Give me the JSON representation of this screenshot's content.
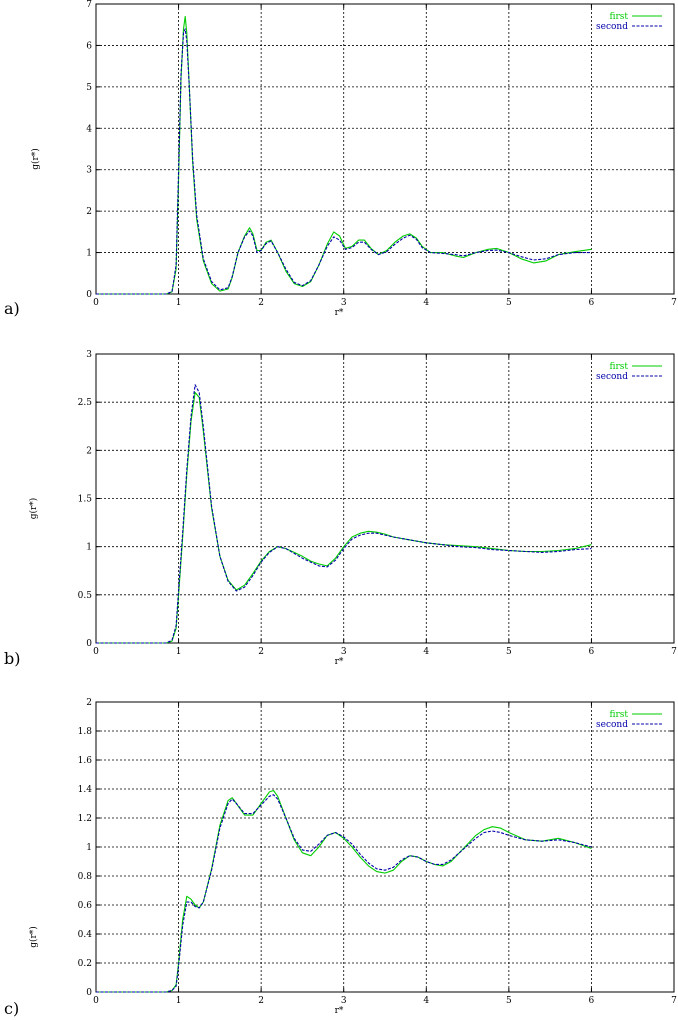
{
  "colors": {
    "first": "#00cc00",
    "second": "#0000aa"
  },
  "chart_data": [
    {
      "type": "line",
      "panel_label": "a)",
      "xlabel": "r*",
      "ylabel": "g(r*)",
      "xlim": [
        0,
        7
      ],
      "ylim": [
        0,
        7
      ],
      "xticks": [
        0,
        1,
        2,
        3,
        4,
        5,
        6,
        7
      ],
      "yticks": [
        0,
        1,
        2,
        3,
        4,
        5,
        6,
        7
      ],
      "grid": true,
      "legend_position": "top-right",
      "series": [
        {
          "name": "first",
          "x": [
            0,
            0.85,
            0.92,
            0.97,
            1.0,
            1.03,
            1.06,
            1.08,
            1.1,
            1.13,
            1.17,
            1.22,
            1.3,
            1.4,
            1.5,
            1.6,
            1.65,
            1.72,
            1.8,
            1.86,
            1.9,
            1.95,
            2.0,
            2.06,
            2.12,
            2.2,
            2.3,
            2.4,
            2.5,
            2.6,
            2.7,
            2.8,
            2.88,
            2.95,
            3.02,
            3.1,
            3.18,
            3.25,
            3.33,
            3.42,
            3.52,
            3.62,
            3.72,
            3.8,
            3.88,
            3.95,
            4.05,
            4.2,
            4.35,
            4.45,
            4.6,
            4.75,
            4.85,
            5.0,
            5.15,
            5.3,
            5.45,
            5.6,
            5.8,
            6.0
          ],
          "y": [
            0,
            0,
            0.05,
            0.6,
            2.8,
            5.2,
            6.4,
            6.7,
            6.3,
            5.0,
            3.2,
            1.8,
            0.8,
            0.25,
            0.07,
            0.12,
            0.4,
            1.0,
            1.4,
            1.6,
            1.45,
            1.05,
            1.05,
            1.25,
            1.3,
            1.0,
            0.55,
            0.25,
            0.18,
            0.3,
            0.7,
            1.2,
            1.5,
            1.4,
            1.1,
            1.15,
            1.3,
            1.3,
            1.1,
            0.95,
            1.05,
            1.25,
            1.4,
            1.45,
            1.35,
            1.15,
            1.0,
            1.0,
            0.92,
            0.88,
            1.0,
            1.08,
            1.1,
            1.0,
            0.85,
            0.75,
            0.8,
            0.95,
            1.02,
            1.08
          ]
        },
        {
          "name": "second",
          "x": [
            0,
            0.85,
            0.92,
            0.97,
            1.0,
            1.03,
            1.06,
            1.08,
            1.1,
            1.13,
            1.17,
            1.22,
            1.3,
            1.4,
            1.5,
            1.6,
            1.65,
            1.72,
            1.8,
            1.86,
            1.9,
            1.95,
            2.0,
            2.06,
            2.12,
            2.2,
            2.3,
            2.4,
            2.5,
            2.6,
            2.7,
            2.8,
            2.88,
            2.95,
            3.02,
            3.1,
            3.18,
            3.25,
            3.33,
            3.42,
            3.52,
            3.62,
            3.72,
            3.8,
            3.88,
            3.95,
            4.05,
            4.2,
            4.35,
            4.45,
            4.6,
            4.75,
            4.85,
            5.0,
            5.15,
            5.3,
            5.45,
            5.6,
            5.8,
            6.0
          ],
          "y": [
            0,
            0,
            0.06,
            0.7,
            3.0,
            5.3,
            6.3,
            6.4,
            6.1,
            5.0,
            3.3,
            1.9,
            0.85,
            0.3,
            0.1,
            0.15,
            0.42,
            1.0,
            1.38,
            1.52,
            1.4,
            1.0,
            1.05,
            1.22,
            1.28,
            1.0,
            0.6,
            0.28,
            0.2,
            0.32,
            0.7,
            1.15,
            1.38,
            1.3,
            1.08,
            1.12,
            1.25,
            1.25,
            1.08,
            0.95,
            1.02,
            1.2,
            1.35,
            1.42,
            1.32,
            1.12,
            1.0,
            0.98,
            0.95,
            0.92,
            1.0,
            1.05,
            1.06,
            1.0,
            0.9,
            0.82,
            0.85,
            0.95,
            1.0,
            1.0
          ]
        }
      ]
    },
    {
      "type": "line",
      "panel_label": "b)",
      "xlabel": "r*",
      "ylabel": "g(r*)",
      "xlim": [
        0,
        7
      ],
      "ylim": [
        0,
        3
      ],
      "xticks": [
        0,
        1,
        2,
        3,
        4,
        5,
        6,
        7
      ],
      "yticks": [
        0,
        0.5,
        1,
        1.5,
        2,
        2.5,
        3
      ],
      "grid": true,
      "legend_position": "top-right",
      "series": [
        {
          "name": "first",
          "x": [
            0,
            0.85,
            0.92,
            0.97,
            1.0,
            1.05,
            1.1,
            1.15,
            1.2,
            1.25,
            1.3,
            1.4,
            1.5,
            1.6,
            1.7,
            1.8,
            1.9,
            2.0,
            2.1,
            2.2,
            2.3,
            2.4,
            2.5,
            2.6,
            2.7,
            2.8,
            2.9,
            3.0,
            3.1,
            3.2,
            3.3,
            3.4,
            3.5,
            3.6,
            3.8,
            4.0,
            4.2,
            4.4,
            4.6,
            4.8,
            5.0,
            5.2,
            5.4,
            5.6,
            5.8,
            6.0
          ],
          "y": [
            0,
            0,
            0.02,
            0.15,
            0.5,
            1.1,
            1.75,
            2.3,
            2.6,
            2.55,
            2.2,
            1.4,
            0.9,
            0.65,
            0.55,
            0.6,
            0.72,
            0.85,
            0.95,
            1.0,
            0.98,
            0.94,
            0.9,
            0.85,
            0.82,
            0.8,
            0.88,
            1.0,
            1.1,
            1.14,
            1.16,
            1.15,
            1.13,
            1.1,
            1.07,
            1.04,
            1.02,
            1.01,
            1.0,
            0.98,
            0.96,
            0.95,
            0.95,
            0.96,
            0.98,
            1.02
          ]
        },
        {
          "name": "second",
          "x": [
            0,
            0.85,
            0.92,
            0.97,
            1.0,
            1.05,
            1.1,
            1.15,
            1.2,
            1.25,
            1.3,
            1.4,
            1.5,
            1.6,
            1.7,
            1.8,
            1.9,
            2.0,
            2.1,
            2.2,
            2.3,
            2.4,
            2.5,
            2.6,
            2.7,
            2.8,
            2.9,
            3.0,
            3.1,
            3.2,
            3.3,
            3.4,
            3.5,
            3.6,
            3.8,
            4.0,
            4.2,
            4.4,
            4.6,
            4.8,
            5.0,
            5.2,
            5.4,
            5.6,
            5.8,
            6.0
          ],
          "y": [
            0,
            0,
            0.03,
            0.18,
            0.55,
            1.15,
            1.8,
            2.35,
            2.68,
            2.6,
            2.25,
            1.42,
            0.9,
            0.64,
            0.54,
            0.58,
            0.7,
            0.84,
            0.94,
            1.0,
            0.98,
            0.93,
            0.88,
            0.84,
            0.8,
            0.79,
            0.86,
            0.98,
            1.08,
            1.12,
            1.14,
            1.14,
            1.12,
            1.1,
            1.07,
            1.04,
            1.02,
            1.0,
            0.99,
            0.97,
            0.96,
            0.95,
            0.94,
            0.95,
            0.97,
            0.98
          ]
        }
      ]
    },
    {
      "type": "line",
      "panel_label": "c)",
      "xlabel": "r*",
      "ylabel": "g(r*)",
      "xlim": [
        0,
        7
      ],
      "ylim": [
        0,
        2
      ],
      "xticks": [
        0,
        1,
        2,
        3,
        4,
        5,
        6,
        7
      ],
      "yticks": [
        0,
        0.2,
        0.4,
        0.6,
        0.8,
        1,
        1.2,
        1.4,
        1.6,
        1.8,
        2
      ],
      "grid": true,
      "legend_position": "top-right",
      "series": [
        {
          "name": "first",
          "x": [
            0,
            0.85,
            0.92,
            0.97,
            1.0,
            1.05,
            1.1,
            1.15,
            1.2,
            1.25,
            1.3,
            1.4,
            1.5,
            1.6,
            1.65,
            1.7,
            1.8,
            1.9,
            2.0,
            2.1,
            2.15,
            2.2,
            2.3,
            2.4,
            2.5,
            2.6,
            2.7,
            2.8,
            2.9,
            3.0,
            3.1,
            3.2,
            3.3,
            3.4,
            3.5,
            3.6,
            3.7,
            3.8,
            3.9,
            4.0,
            4.1,
            4.2,
            4.3,
            4.4,
            4.5,
            4.6,
            4.7,
            4.8,
            4.9,
            5.0,
            5.2,
            5.4,
            5.6,
            5.8,
            6.0
          ],
          "y": [
            0,
            0,
            0.01,
            0.05,
            0.2,
            0.5,
            0.66,
            0.64,
            0.6,
            0.58,
            0.62,
            0.85,
            1.15,
            1.32,
            1.34,
            1.3,
            1.22,
            1.22,
            1.3,
            1.38,
            1.39,
            1.35,
            1.2,
            1.05,
            0.96,
            0.94,
            1.0,
            1.08,
            1.1,
            1.06,
            1.0,
            0.93,
            0.87,
            0.83,
            0.82,
            0.84,
            0.9,
            0.94,
            0.93,
            0.9,
            0.88,
            0.87,
            0.9,
            0.96,
            1.02,
            1.08,
            1.12,
            1.14,
            1.13,
            1.1,
            1.05,
            1.04,
            1.06,
            1.03,
            0.99
          ]
        },
        {
          "name": "second",
          "x": [
            0,
            0.85,
            0.92,
            0.97,
            1.0,
            1.05,
            1.1,
            1.15,
            1.2,
            1.25,
            1.3,
            1.4,
            1.5,
            1.6,
            1.65,
            1.7,
            1.8,
            1.9,
            2.0,
            2.1,
            2.15,
            2.2,
            2.3,
            2.4,
            2.5,
            2.6,
            2.7,
            2.8,
            2.9,
            3.0,
            3.1,
            3.2,
            3.3,
            3.4,
            3.5,
            3.6,
            3.7,
            3.8,
            3.9,
            4.0,
            4.1,
            4.2,
            4.3,
            4.4,
            4.5,
            4.6,
            4.7,
            4.8,
            4.9,
            5.0,
            5.2,
            5.4,
            5.6,
            5.8,
            6.0
          ],
          "y": [
            0,
            0,
            0.01,
            0.04,
            0.18,
            0.46,
            0.62,
            0.62,
            0.59,
            0.58,
            0.62,
            0.84,
            1.13,
            1.3,
            1.33,
            1.3,
            1.23,
            1.23,
            1.29,
            1.35,
            1.36,
            1.33,
            1.2,
            1.06,
            0.98,
            0.97,
            1.02,
            1.08,
            1.1,
            1.07,
            1.02,
            0.95,
            0.89,
            0.85,
            0.84,
            0.86,
            0.91,
            0.94,
            0.93,
            0.9,
            0.88,
            0.88,
            0.91,
            0.96,
            1.01,
            1.06,
            1.1,
            1.11,
            1.1,
            1.08,
            1.05,
            1.04,
            1.05,
            1.03,
            1.0
          ]
        }
      ]
    }
  ]
}
